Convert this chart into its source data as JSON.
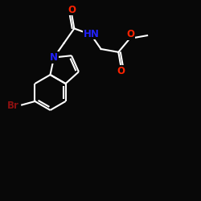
{
  "bg_color": "#080808",
  "bond_color": "#ffffff",
  "N_color": "#2222ff",
  "O_color": "#ff2200",
  "Br_color": "#8B1010",
  "lw": 1.5,
  "fs": 8.5,
  "xlim": [
    0,
    10
  ],
  "ylim": [
    0,
    10
  ]
}
